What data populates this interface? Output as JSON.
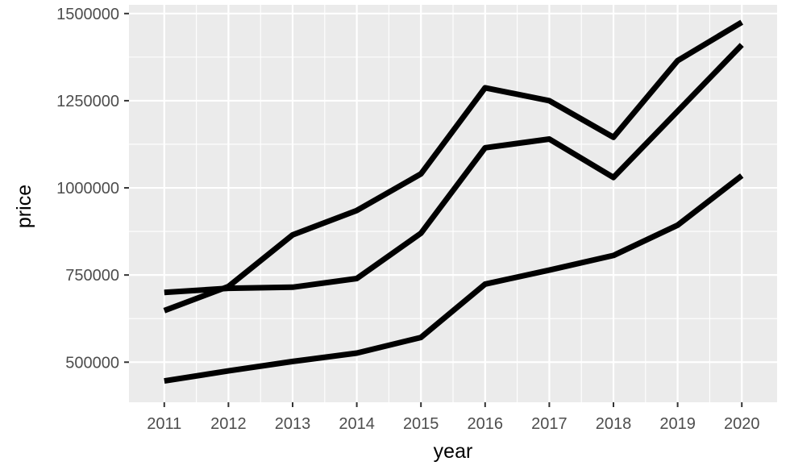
{
  "chart_data": {
    "type": "line",
    "title": "",
    "xlabel": "year",
    "ylabel": "price",
    "x": [
      2011,
      2012,
      2013,
      2014,
      2015,
      2016,
      2017,
      2018,
      2019,
      2020
    ],
    "xlim": [
      2010.45,
      2020.55
    ],
    "ylim": [
      385000,
      1525000
    ],
    "x_ticks": [
      "2011",
      "2012",
      "2013",
      "2014",
      "2015",
      "2016",
      "2017",
      "2018",
      "2019",
      "2020"
    ],
    "y_ticks": [
      {
        "value": 500000,
        "label": "500000"
      },
      {
        "value": 750000,
        "label": "750000"
      },
      {
        "value": 1000000,
        "label": "1000000"
      },
      {
        "value": 1250000,
        "label": "1250000"
      },
      {
        "value": 1500000,
        "label": "1500000"
      }
    ],
    "grid": true,
    "legend": "none",
    "panel_background": "#ebebeb",
    "grid_color": "#ffffff",
    "line_color": "#000000",
    "series": [
      {
        "values": [
          648000,
          717000,
          865000,
          935000,
          1040000,
          1287000,
          1250000,
          1145000,
          1365000,
          1475000
        ]
      },
      {
        "values": [
          700000,
          712000,
          715000,
          740000,
          870000,
          1115000,
          1140000,
          1030000,
          1220000,
          1410000
        ]
      },
      {
        "values": [
          446000,
          475000,
          502000,
          526000,
          571000,
          724000,
          764000,
          806000,
          893000,
          1035000
        ]
      }
    ]
  }
}
